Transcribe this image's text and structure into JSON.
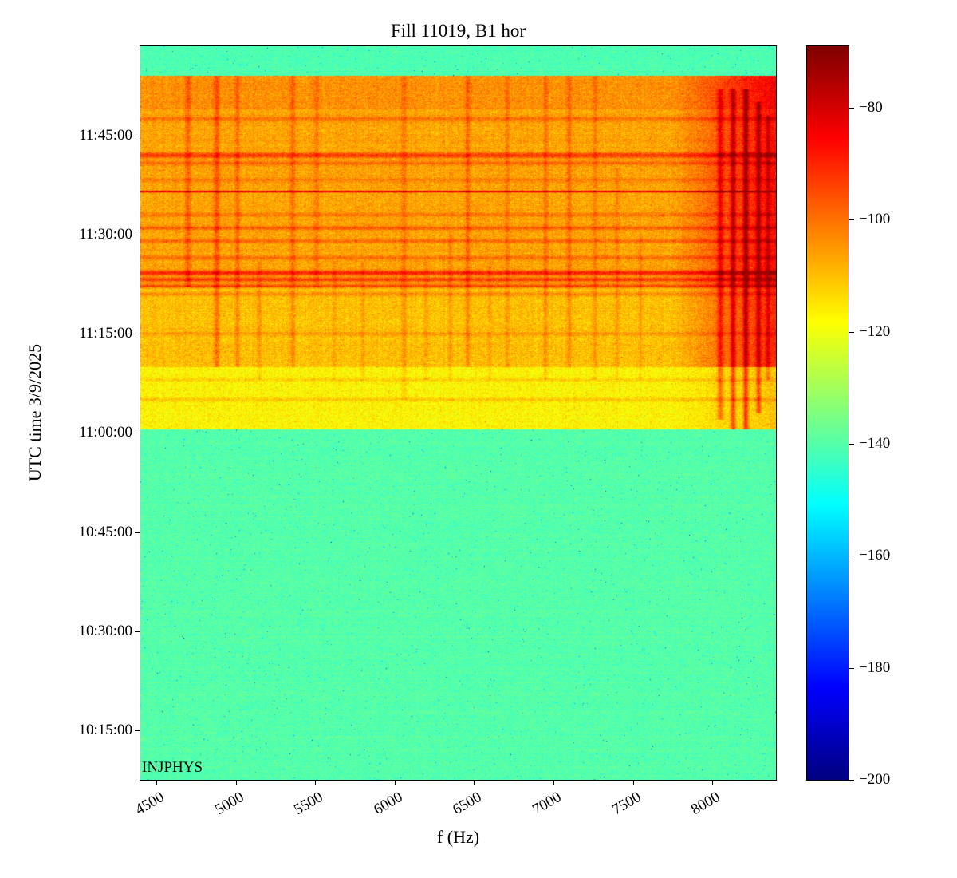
{
  "chart_data": {
    "type": "heatmap",
    "title": "Fill 11019, B1 hor",
    "xlabel": "f (Hz)",
    "ylabel": "UTC time 3/9/2025",
    "annotation": "INJPHYS",
    "colormap": "jet",
    "value_unit": "dB",
    "x_range": [
      4400,
      8400
    ],
    "x_ticks": [
      4500,
      5000,
      5500,
      6000,
      6500,
      7000,
      7500,
      8000
    ],
    "y_ticks": [
      "11:45:00",
      "11:30:00",
      "11:15:00",
      "11:00:00",
      "10:45:00",
      "10:30:00",
      "10:15:00"
    ],
    "time_top_min": 718.5,
    "time_bottom_min": 607.5,
    "colorbar": {
      "vmin": -200,
      "vmax": -69,
      "tick_values": [
        -80,
        -100,
        -120,
        -140,
        -160,
        -180,
        -200
      ],
      "tick_labels": [
        "−80",
        "−100",
        "−120",
        "−140",
        "−160",
        "−180",
        "−200"
      ]
    },
    "background_level_db": -140,
    "bands": [
      {
        "name": "quiet-top",
        "t0": 714,
        "t1": 718.5,
        "level_db": -141
      },
      {
        "name": "active-late",
        "t0": 709,
        "t1": 714,
        "level_db": -104
      },
      {
        "name": "active-main",
        "t0": 682,
        "t1": 709,
        "level_db": -106.5
      },
      {
        "name": "active-mid",
        "t0": 670,
        "t1": 682,
        "level_db": -110
      },
      {
        "name": "active-early",
        "t0": 660.5,
        "t1": 670,
        "level_db": -117
      },
      {
        "name": "quiet-bottom",
        "t0": 607.5,
        "t1": 660.5,
        "level_db": -140
      }
    ],
    "right_band": {
      "f_start": 7750,
      "boost_db": 20,
      "t0": 660.5,
      "t1": 714
    },
    "vertical_lines": [
      {
        "f": 4700,
        "boost_db": 8,
        "w": 18,
        "t0": 682,
        "t1": 714
      },
      {
        "f": 4880,
        "boost_db": 10,
        "w": 18,
        "t0": 670,
        "t1": 714
      },
      {
        "f": 5010,
        "boost_db": 7,
        "w": 15,
        "t0": 670,
        "t1": 714
      },
      {
        "f": 5150,
        "boost_db": 5,
        "w": 14,
        "t0": 668,
        "t1": 686
      },
      {
        "f": 5360,
        "boost_db": 7,
        "w": 15,
        "t0": 670,
        "t1": 714
      },
      {
        "f": 5510,
        "boost_db": 5,
        "w": 14,
        "t0": 682,
        "t1": 714
      },
      {
        "f": 5620,
        "boost_db": 4,
        "w": 13,
        "t0": 668,
        "t1": 686
      },
      {
        "f": 5800,
        "boost_db": 4,
        "w": 13,
        "t0": 668,
        "t1": 686
      },
      {
        "f": 6060,
        "boost_db": 6,
        "w": 15,
        "t0": 665,
        "t1": 714
      },
      {
        "f": 6200,
        "boost_db": 4,
        "w": 13,
        "t0": 668,
        "t1": 686
      },
      {
        "f": 6350,
        "boost_db": 4,
        "w": 13,
        "t0": 668,
        "t1": 690
      },
      {
        "f": 6460,
        "boost_db": 8,
        "w": 15,
        "t0": 670,
        "t1": 714
      },
      {
        "f": 6600,
        "boost_db": 4,
        "w": 13,
        "t0": 668,
        "t1": 686
      },
      {
        "f": 6710,
        "boost_db": 5,
        "w": 14,
        "t0": 670,
        "t1": 714
      },
      {
        "f": 6950,
        "boost_db": 6,
        "w": 15,
        "t0": 668,
        "t1": 714
      },
      {
        "f": 7100,
        "boost_db": 7,
        "w": 15,
        "t0": 670,
        "t1": 714
      },
      {
        "f": 7260,
        "boost_db": 5,
        "w": 14,
        "t0": 668,
        "t1": 714
      },
      {
        "f": 7400,
        "boost_db": 4,
        "w": 13,
        "t0": 668,
        "t1": 700
      },
      {
        "f": 7550,
        "boost_db": 4,
        "w": 13,
        "t0": 668,
        "t1": 690
      },
      {
        "f": 8050,
        "boost_db": 14,
        "w": 18,
        "t0": 662,
        "t1": 712
      },
      {
        "f": 8130,
        "boost_db": 18,
        "w": 16,
        "t0": 660.5,
        "t1": 712
      },
      {
        "f": 8210,
        "boost_db": 20,
        "w": 16,
        "t0": 660.5,
        "t1": 712
      },
      {
        "f": 8290,
        "boost_db": 16,
        "w": 15,
        "t0": 663,
        "t1": 710
      },
      {
        "f": 8350,
        "boost_db": 11,
        "w": 13,
        "t0": 668,
        "t1": 708
      }
    ],
    "horizontal_lines": [
      {
        "t": 707.5,
        "boost_db": 7,
        "w": 0.35
      },
      {
        "t": 702.0,
        "boost_db": 14,
        "w": 0.4
      },
      {
        "t": 700.8,
        "boost_db": 8,
        "w": 0.3
      },
      {
        "t": 698.3,
        "boost_db": 5,
        "w": 0.3
      },
      {
        "t": 696.5,
        "boost_db": 33,
        "w": 0.12
      },
      {
        "t": 693.0,
        "boost_db": 6,
        "w": 0.3
      },
      {
        "t": 691.0,
        "boost_db": 9,
        "w": 0.3
      },
      {
        "t": 689.0,
        "boost_db": 8,
        "w": 0.3
      },
      {
        "t": 686.5,
        "boost_db": 7,
        "w": 0.3
      },
      {
        "t": 684.2,
        "boost_db": 18,
        "w": 0.35
      },
      {
        "t": 683.2,
        "boost_db": 14,
        "w": 0.3
      },
      {
        "t": 682.2,
        "boost_db": 12,
        "w": 0.3
      },
      {
        "t": 681.0,
        "boost_db": 7,
        "w": 0.3
      },
      {
        "t": 675.0,
        "boost_db": 5,
        "w": 0.3
      },
      {
        "t": 668.0,
        "boost_db": 5,
        "w": 0.3
      },
      {
        "t": 665.0,
        "boost_db": 6,
        "w": 0.3
      }
    ]
  }
}
